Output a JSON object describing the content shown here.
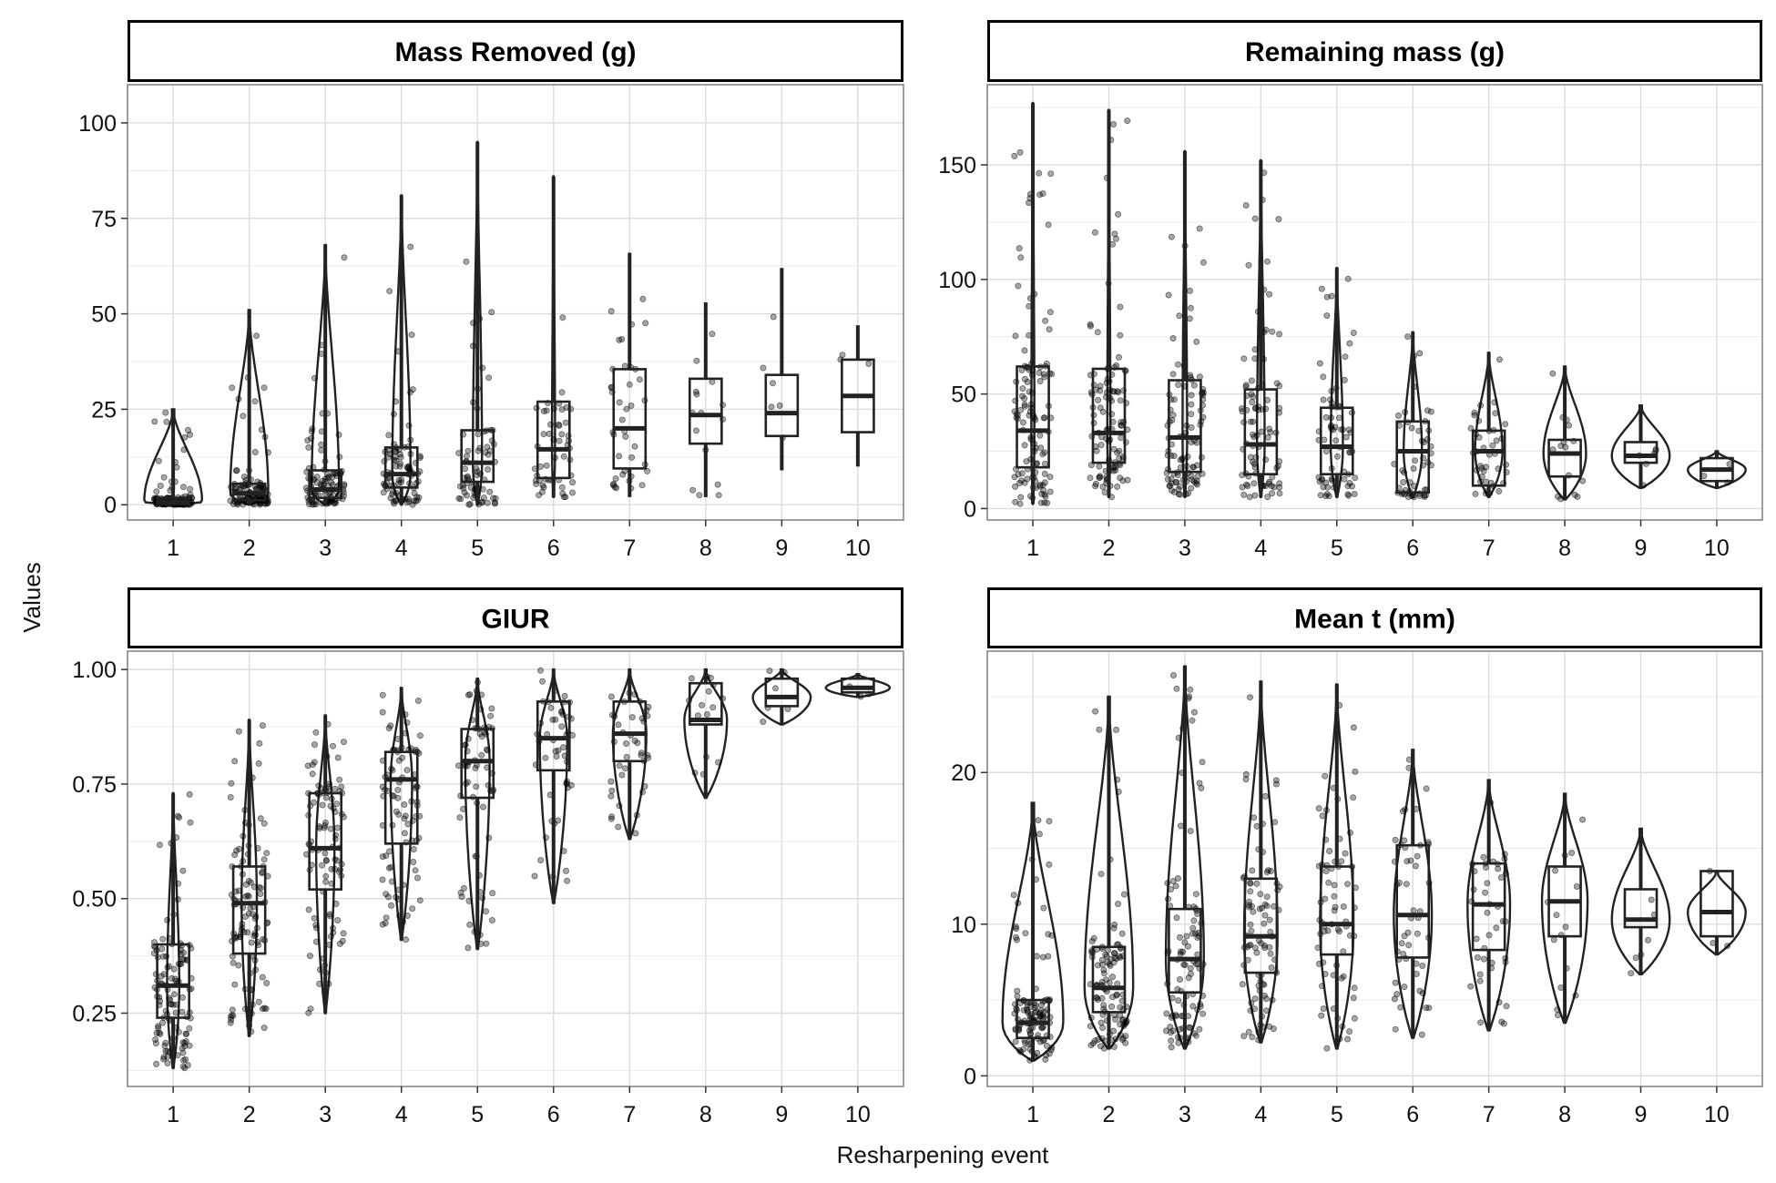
{
  "figure": {
    "xlabel": "Resharpening event",
    "ylabel": "Values"
  },
  "chart_data": [
    {
      "type": "box",
      "title": "Mass Removed (g)",
      "xlabel": "Resharpening event",
      "ylabel": "Values",
      "categories": [
        "1",
        "2",
        "3",
        "4",
        "5",
        "6",
        "7",
        "8",
        "9",
        "10"
      ],
      "ylim": [
        -4,
        110
      ],
      "yticks": [
        0,
        25,
        50,
        75,
        100
      ],
      "ytick_labels": [
        "0",
        "25",
        "50",
        "75",
        "100"
      ],
      "grid": true,
      "boxes": [
        {
          "category": "1",
          "min": 0,
          "q1": 0.2,
          "median": 0.8,
          "q3": 1.8,
          "max": 25
        },
        {
          "category": "2",
          "min": 0,
          "q1": 1.2,
          "median": 3,
          "q3": 5.5,
          "max": 51
        },
        {
          "category": "3",
          "min": 0,
          "q1": 1.8,
          "median": 4,
          "q3": 9,
          "max": 68
        },
        {
          "category": "4",
          "min": 0,
          "q1": 4.5,
          "median": 8,
          "q3": 15,
          "max": 81
        },
        {
          "category": "5",
          "min": 0,
          "q1": 6,
          "median": 11,
          "q3": 19.5,
          "max": 95
        },
        {
          "category": "6",
          "min": 2,
          "q1": 7,
          "median": 14.5,
          "q3": 27,
          "max": 86
        },
        {
          "category": "7",
          "min": 2,
          "q1": 9.5,
          "median": 20,
          "q3": 35.5,
          "max": 66
        },
        {
          "category": "8",
          "min": 2,
          "q1": 16,
          "median": 23.5,
          "q3": 33,
          "max": 53
        },
        {
          "category": "9",
          "min": 9,
          "q1": 18,
          "median": 24,
          "q3": 34,
          "max": 62
        },
        {
          "category": "10",
          "min": 10,
          "q1": 19,
          "median": 28.5,
          "q3": 38,
          "max": 47
        }
      ],
      "violin_half_widths": [
        0.38,
        0.25,
        0.18,
        0.12,
        0.06,
        0.02,
        0,
        0,
        0,
        0
      ],
      "point_counts": [
        120,
        110,
        100,
        90,
        70,
        50,
        40,
        15,
        6,
        3
      ]
    },
    {
      "type": "box",
      "title": "Remaining mass (g)",
      "xlabel": "Resharpening event",
      "ylabel": "Values",
      "categories": [
        "1",
        "2",
        "3",
        "4",
        "5",
        "6",
        "7",
        "8",
        "9",
        "10"
      ],
      "ylim": [
        -5,
        185
      ],
      "yticks": [
        0,
        50,
        100,
        150
      ],
      "ytick_labels": [
        "0",
        "50",
        "100",
        "150"
      ],
      "grid": true,
      "boxes": [
        {
          "category": "1",
          "min": 2,
          "q1": 18,
          "median": 34,
          "q3": 62,
          "max": 177
        },
        {
          "category": "2",
          "min": 5,
          "q1": 20,
          "median": 33,
          "q3": 61,
          "max": 174
        },
        {
          "category": "3",
          "min": 5,
          "q1": 16,
          "median": 31,
          "q3": 56,
          "max": 156
        },
        {
          "category": "4",
          "min": 5,
          "q1": 15,
          "median": 28,
          "q3": 52,
          "max": 152
        },
        {
          "category": "5",
          "min": 5,
          "q1": 15,
          "median": 27,
          "q3": 44,
          "max": 105
        },
        {
          "category": "6",
          "min": 5,
          "q1": 7,
          "median": 25,
          "q3": 38,
          "max": 77
        },
        {
          "category": "7",
          "min": 5,
          "q1": 10,
          "median": 25,
          "q3": 34,
          "max": 68
        },
        {
          "category": "8",
          "min": 4,
          "q1": 14,
          "median": 24,
          "q3": 30,
          "max": 62
        },
        {
          "category": "9",
          "min": 9,
          "q1": 20,
          "median": 23,
          "q3": 29,
          "max": 45
        },
        {
          "category": "10",
          "min": 9,
          "q1": 12,
          "median": 17,
          "q3": 22,
          "max": 25
        }
      ],
      "violin_half_widths": [
        0.02,
        0.02,
        0.03,
        0.05,
        0.08,
        0.12,
        0.18,
        0.28,
        0.38,
        0.38
      ],
      "point_counts": [
        120,
        110,
        100,
        90,
        70,
        50,
        40,
        15,
        6,
        3
      ]
    },
    {
      "type": "box",
      "title": "GIUR",
      "xlabel": "Resharpening event",
      "ylabel": "Values",
      "categories": [
        "1",
        "2",
        "3",
        "4",
        "5",
        "6",
        "7",
        "8",
        "9",
        "10"
      ],
      "ylim": [
        0.09,
        1.04
      ],
      "yticks": [
        0.25,
        0.5,
        0.75,
        1.0
      ],
      "ytick_labels": [
        "0.25",
        "0.50",
        "0.75",
        "1.00"
      ],
      "grid": true,
      "boxes": [
        {
          "category": "1",
          "min": 0.13,
          "q1": 0.24,
          "median": 0.31,
          "q3": 0.4,
          "max": 0.73
        },
        {
          "category": "2",
          "min": 0.2,
          "q1": 0.38,
          "median": 0.49,
          "q3": 0.57,
          "max": 0.89
        },
        {
          "category": "3",
          "min": 0.25,
          "q1": 0.52,
          "median": 0.61,
          "q3": 0.73,
          "max": 0.9
        },
        {
          "category": "4",
          "min": 0.41,
          "q1": 0.62,
          "median": 0.76,
          "q3": 0.82,
          "max": 0.96
        },
        {
          "category": "5",
          "min": 0.39,
          "q1": 0.72,
          "median": 0.8,
          "q3": 0.87,
          "max": 0.98
        },
        {
          "category": "6",
          "min": 0.49,
          "q1": 0.78,
          "median": 0.85,
          "q3": 0.93,
          "max": 1.0
        },
        {
          "category": "7",
          "min": 0.63,
          "q1": 0.8,
          "median": 0.86,
          "q3": 0.93,
          "max": 1.0
        },
        {
          "category": "8",
          "min": 0.72,
          "q1": 0.88,
          "median": 0.89,
          "q3": 0.97,
          "max": 1.0
        },
        {
          "category": "9",
          "min": 0.88,
          "q1": 0.92,
          "median": 0.94,
          "q3": 0.98,
          "max": 1.0
        },
        {
          "category": "10",
          "min": 0.94,
          "q1": 0.95,
          "median": 0.96,
          "q3": 0.98,
          "max": 0.99
        }
      ],
      "violin_half_widths": [
        0.08,
        0.1,
        0.12,
        0.14,
        0.16,
        0.18,
        0.22,
        0.28,
        0.38,
        0.42
      ],
      "point_counts": [
        120,
        110,
        100,
        90,
        70,
        50,
        40,
        15,
        6,
        3
      ]
    },
    {
      "type": "box",
      "title": "Mean t (mm)",
      "xlabel": "Resharpening event",
      "ylabel": "Values",
      "categories": [
        "1",
        "2",
        "3",
        "4",
        "5",
        "6",
        "7",
        "8",
        "9",
        "10"
      ],
      "ylim": [
        -0.7,
        28
      ],
      "yticks": [
        0,
        10,
        20
      ],
      "ytick_labels": [
        "0",
        "10",
        "20"
      ],
      "grid": true,
      "boxes": [
        {
          "category": "1",
          "min": 1,
          "q1": 2.5,
          "median": 3.5,
          "q3": 5,
          "max": 18
        },
        {
          "category": "2",
          "min": 1.8,
          "q1": 4.2,
          "median": 5.8,
          "q3": 8.5,
          "max": 25
        },
        {
          "category": "3",
          "min": 1.8,
          "q1": 5.5,
          "median": 7.7,
          "q3": 11,
          "max": 27
        },
        {
          "category": "4",
          "min": 2.2,
          "q1": 6.8,
          "median": 9.2,
          "q3": 13,
          "max": 26
        },
        {
          "category": "5",
          "min": 1.8,
          "q1": 8,
          "median": 10,
          "q3": 13.8,
          "max": 25.8
        },
        {
          "category": "6",
          "min": 2.5,
          "q1": 7.8,
          "median": 10.6,
          "q3": 15.2,
          "max": 21.5
        },
        {
          "category": "7",
          "min": 3,
          "q1": 8.3,
          "median": 11.3,
          "q3": 14,
          "max": 19.5
        },
        {
          "category": "8",
          "min": 3.5,
          "q1": 9.2,
          "median": 11.5,
          "q3": 13.8,
          "max": 18.6
        },
        {
          "category": "9",
          "min": 6.7,
          "q1": 9.8,
          "median": 10.3,
          "q3": 12.3,
          "max": 16.3
        },
        {
          "category": "10",
          "min": 8,
          "q1": 9.2,
          "median": 10.8,
          "q3": 13.5,
          "max": 13.5
        }
      ],
      "violin_half_widths": [
        0.4,
        0.32,
        0.25,
        0.22,
        0.22,
        0.25,
        0.28,
        0.3,
        0.38,
        0.38
      ],
      "point_counts": [
        120,
        110,
        100,
        90,
        70,
        50,
        40,
        15,
        6,
        3
      ]
    }
  ]
}
